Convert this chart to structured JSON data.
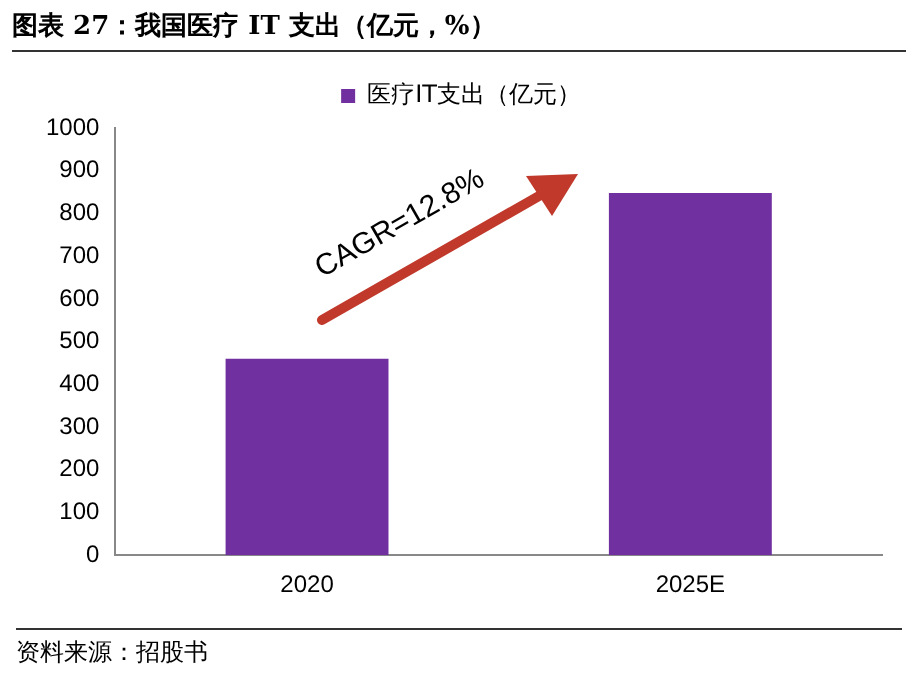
{
  "chart_data": {
    "type": "bar",
    "title": "图表 27：我国医疗 IT 支出（亿元，%）",
    "categories": [
      "2020",
      "2025E"
    ],
    "series": [
      {
        "name": "医疗IT支出（亿元）",
        "color": "#7030a0",
        "values": [
          460,
          848
        ]
      }
    ],
    "ylim": [
      0,
      1000
    ],
    "yticks": [
      0,
      100,
      200,
      300,
      400,
      500,
      600,
      700,
      800,
      900,
      1000
    ],
    "grid": false,
    "legend": "top",
    "annotations": [
      "CAGR=12.8%",
      "资料来源：招股书"
    ]
  }
}
